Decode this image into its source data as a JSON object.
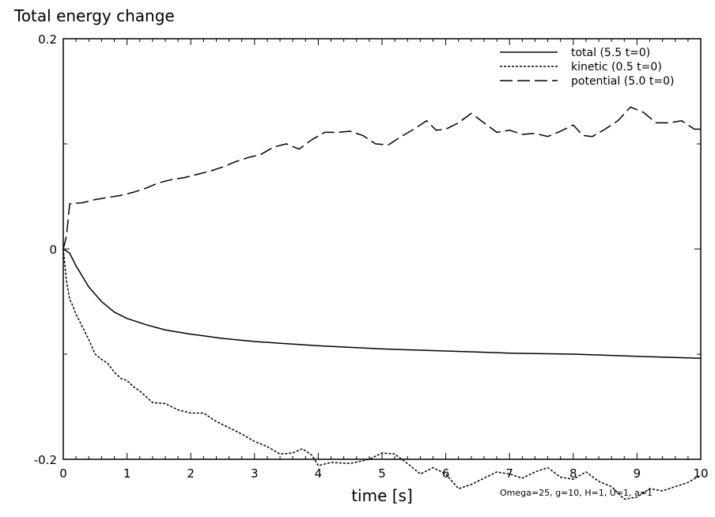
{
  "chart_data": {
    "type": "line",
    "title": "Total energy change",
    "xlabel": "time [s]",
    "ylabel": "",
    "xlim": [
      0,
      10
    ],
    "ylim": [
      -0.2,
      0.2
    ],
    "x_ticks": [
      0,
      1,
      2,
      3,
      4,
      5,
      6,
      7,
      8,
      9,
      10
    ],
    "x_tick_labels": [
      "0",
      "1",
      "2",
      "3",
      "4",
      "5",
      "6",
      "7",
      "8",
      "9",
      "10"
    ],
    "y_ticks": [
      -0.2,
      0,
      0.2
    ],
    "y_tick_labels": [
      "-0.2",
      "0",
      "0.2"
    ],
    "legend_position": "top-right",
    "annotation": "Omega=25, g=10, H=1, U=1, a=1",
    "series": [
      {
        "name": "total",
        "legend_label": "total (5.5 t=0)",
        "style": "solid",
        "x": [
          0,
          0.1,
          0.2,
          0.3,
          0.4,
          0.6,
          0.8,
          1.0,
          1.3,
          1.6,
          2.0,
          2.5,
          3.0,
          3.5,
          4.0,
          5.0,
          6.0,
          7.0,
          8.0,
          9.0,
          10.0
        ],
        "y": [
          0,
          -0.004,
          -0.016,
          -0.026,
          -0.036,
          -0.05,
          -0.06,
          -0.066,
          -0.072,
          -0.077,
          -0.081,
          -0.085,
          -0.088,
          -0.09,
          -0.092,
          -0.095,
          -0.097,
          -0.099,
          -0.1,
          -0.102,
          -0.104
        ]
      },
      {
        "name": "kinetic",
        "legend_label": "kinetic (0.5 t=0)",
        "style": "dotted",
        "x": [
          0,
          0.05,
          0.1,
          0.15,
          0.2,
          0.3,
          0.4,
          0.5,
          0.6,
          0.7,
          0.8,
          0.9,
          1.0,
          1.1,
          1.2,
          1.4,
          1.6,
          1.8,
          2.0,
          2.2,
          2.4,
          2.6,
          2.8,
          3.0,
          3.2,
          3.4,
          3.6,
          3.75,
          3.9,
          4.0,
          4.2,
          4.5,
          4.8,
          5.0,
          5.2,
          5.4,
          5.6,
          5.8,
          6.0,
          6.2,
          6.4,
          6.6,
          6.8,
          7.0,
          7.2,
          7.4,
          7.6,
          7.8,
          8.0,
          8.2,
          8.4,
          8.6,
          8.8,
          9.0,
          9.2,
          9.4,
          9.6,
          9.8,
          10.0
        ],
        "y": [
          0,
          -0.03,
          -0.048,
          -0.054,
          -0.062,
          -0.074,
          -0.086,
          -0.1,
          -0.105,
          -0.109,
          -0.117,
          -0.123,
          -0.125,
          -0.131,
          -0.135,
          -0.146,
          -0.147,
          -0.153,
          -0.156,
          -0.156,
          -0.164,
          -0.17,
          -0.176,
          -0.183,
          -0.188,
          -0.195,
          -0.194,
          -0.19,
          -0.196,
          -0.206,
          -0.203,
          -0.204,
          -0.2,
          -0.194,
          -0.195,
          -0.204,
          -0.214,
          -0.208,
          -0.214,
          -0.228,
          -0.224,
          -0.218,
          -0.212,
          -0.214,
          -0.218,
          -0.212,
          -0.208,
          -0.217,
          -0.219,
          -0.212,
          -0.221,
          -0.226,
          -0.238,
          -0.236,
          -0.228,
          -0.23,
          -0.226,
          -0.222,
          -0.215
        ]
      },
      {
        "name": "potential",
        "legend_label": "potential (5.0 t=0)",
        "style": "dashed",
        "x": [
          0,
          0.05,
          0.1,
          0.3,
          0.5,
          0.7,
          0.9,
          1.1,
          1.3,
          1.5,
          1.7,
          1.9,
          2.1,
          2.3,
          2.5,
          2.7,
          2.9,
          3.1,
          3.3,
          3.5,
          3.7,
          3.9,
          4.1,
          4.3,
          4.5,
          4.7,
          4.9,
          5.1,
          5.3,
          5.5,
          5.7,
          5.85,
          6.0,
          6.2,
          6.4,
          6.6,
          6.8,
          7.0,
          7.2,
          7.4,
          7.6,
          7.8,
          8.0,
          8.15,
          8.3,
          8.5,
          8.7,
          8.9,
          9.1,
          9.3,
          9.5,
          9.7,
          9.9,
          10.0
        ],
        "y": [
          0,
          0.012,
          0.043,
          0.044,
          0.047,
          0.049,
          0.051,
          0.054,
          0.058,
          0.063,
          0.066,
          0.068,
          0.071,
          0.074,
          0.078,
          0.083,
          0.087,
          0.09,
          0.097,
          0.1,
          0.095,
          0.104,
          0.111,
          0.111,
          0.112,
          0.108,
          0.1,
          0.099,
          0.107,
          0.114,
          0.122,
          0.113,
          0.114,
          0.12,
          0.129,
          0.12,
          0.111,
          0.113,
          0.109,
          0.11,
          0.107,
          0.112,
          0.118,
          0.108,
          0.107,
          0.114,
          0.122,
          0.135,
          0.13,
          0.12,
          0.12,
          0.122,
          0.114,
          0.114
        ]
      }
    ]
  }
}
